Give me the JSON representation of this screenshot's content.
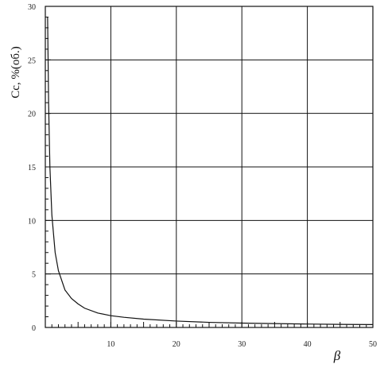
{
  "chart_data": {
    "type": "line",
    "title": "",
    "xlabel": "β",
    "ylabel": "Cc, %(об.)",
    "xlim": [
      0,
      50
    ],
    "ylim": [
      0,
      30
    ],
    "x_ticks": [
      10,
      20,
      30,
      40,
      50
    ],
    "y_ticks": [
      0,
      5,
      10,
      15,
      20,
      25,
      30
    ],
    "grid": true,
    "series": [
      {
        "x": [
          0.35,
          0.5,
          0.7,
          1,
          1.5,
          2,
          3,
          4,
          5,
          6,
          8,
          10,
          12,
          15,
          20,
          25,
          30,
          35,
          40,
          45,
          50
        ],
        "values": [
          29,
          21,
          15,
          10.5,
          7,
          5.3,
          3.5,
          2.7,
          2.2,
          1.8,
          1.35,
          1.1,
          0.95,
          0.78,
          0.6,
          0.48,
          0.41,
          0.36,
          0.32,
          0.29,
          0.27
        ]
      }
    ]
  }
}
